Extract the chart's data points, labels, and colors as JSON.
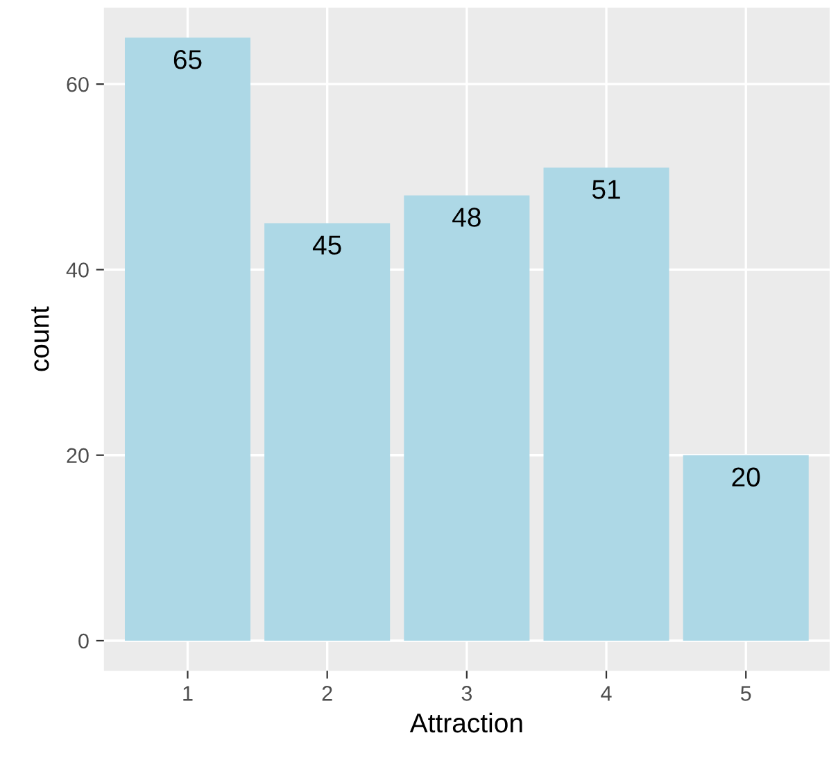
{
  "chart_data": {
    "type": "bar",
    "xlabel": "Attraction",
    "ylabel": "count",
    "categories": [
      "1",
      "2",
      "3",
      "4",
      "5"
    ],
    "values": [
      65,
      45,
      48,
      51,
      20
    ],
    "color": "#add8e6",
    "data_labels": true,
    "ylim": [
      -3.25,
      68.25
    ],
    "yticks": [
      0,
      20,
      40,
      60
    ],
    "grid": true
  }
}
